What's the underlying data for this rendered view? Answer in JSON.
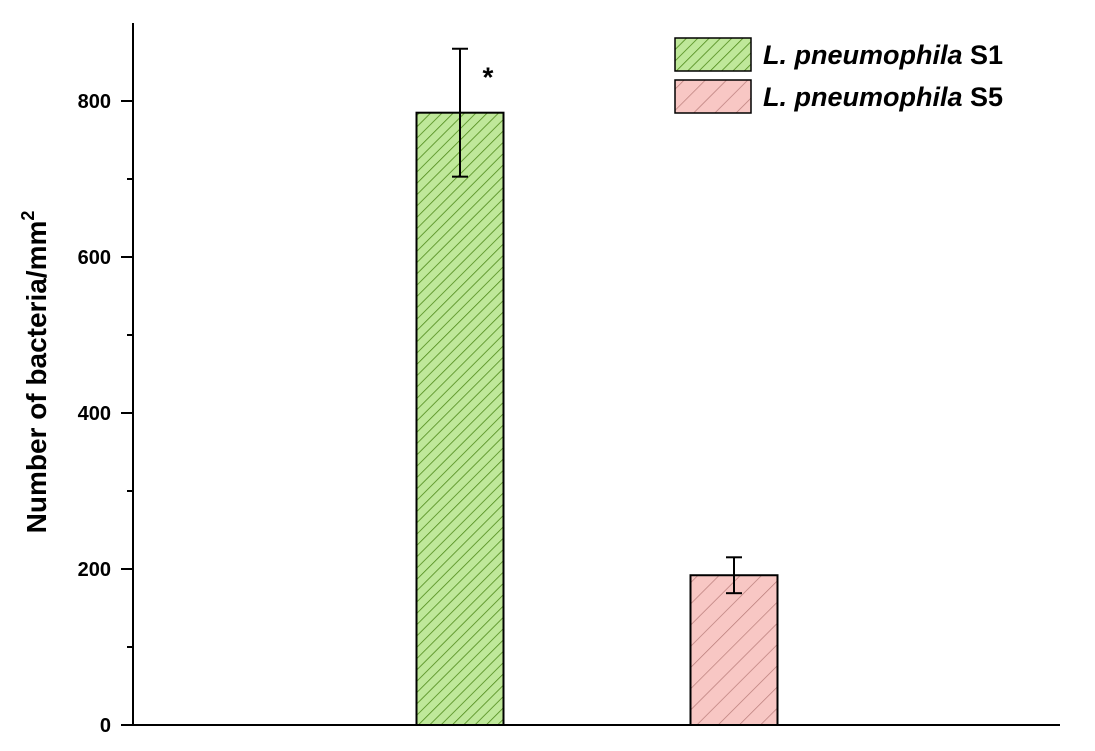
{
  "chart_data": {
    "type": "bar",
    "ylabel": {
      "main": "Number of bacteria/mm",
      "superscript": "2"
    },
    "xlabel": "",
    "ylim": [
      0,
      900
    ],
    "yticks": [
      0,
      200,
      400,
      600,
      800
    ],
    "grid": false,
    "legend_position": "top-right",
    "series": [
      {
        "name_italic": "L. pneumophila",
        "name_suffix": "S1",
        "value": 785,
        "error": 82,
        "color": "#bfe89a",
        "hatch_color": "#4f8a1a",
        "annotation": "*"
      },
      {
        "name_italic": "L. pneumophila",
        "name_suffix": "S5",
        "value": 192,
        "error": 23,
        "color": "#f8c7c4",
        "hatch_color": "#b77b78",
        "annotation": ""
      }
    ]
  }
}
